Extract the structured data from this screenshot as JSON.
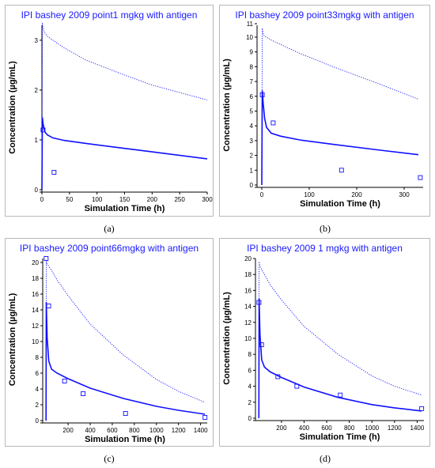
{
  "chart_data": [
    {
      "type": "line",
      "title": "IPI bashey 2009 point1 mgkg with antigen",
      "xlabel": "Simulation Time (h)",
      "ylabel": "Concentration (µg/mL)",
      "caption": "(a)",
      "xlim": [
        0,
        300
      ],
      "ylim": [
        0,
        3.3
      ],
      "xticks": [
        0,
        50,
        100,
        150,
        200,
        250,
        300
      ],
      "yticks": [
        0,
        1,
        2,
        3
      ],
      "series": [
        {
          "style": "solid",
          "x": [
            0,
            0.8,
            2,
            4,
            6,
            10,
            20,
            40,
            80,
            150,
            200,
            300
          ],
          "y": [
            0,
            1.45,
            1.33,
            1.22,
            1.15,
            1.1,
            1.04,
            0.99,
            0.93,
            0.83,
            0.76,
            0.62
          ]
        },
        {
          "style": "dotted",
          "x": [
            0,
            0.8,
            2,
            5,
            10,
            20,
            40,
            80,
            150,
            200,
            300
          ],
          "y": [
            0,
            3.35,
            3.25,
            3.15,
            3.08,
            3.0,
            2.85,
            2.6,
            2.3,
            2.1,
            1.8
          ]
        }
      ],
      "observed": {
        "x": [
          2,
          22
        ],
        "y": [
          1.2,
          0.35
        ]
      }
    },
    {
      "type": "line",
      "title": "IPI bashey 2009 point33mgkg with antigen",
      "xlabel": "Simulation Time (h)",
      "ylabel": "Concentration (µg/mL)",
      "caption": "(b)",
      "xlim": [
        -10,
        340
      ],
      "ylim": [
        0,
        10.8
      ],
      "xticks": [
        0,
        100,
        200,
        300
      ],
      "yticks": [
        0,
        1,
        2,
        3,
        4,
        5,
        6,
        7,
        8,
        9,
        10,
        11
      ],
      "series": [
        {
          "style": "solid",
          "x": [
            0,
            1,
            3,
            6,
            10,
            20,
            40,
            80,
            150,
            250,
            330
          ],
          "y": [
            0,
            6.4,
            5.5,
            4.5,
            3.9,
            3.5,
            3.3,
            3.05,
            2.75,
            2.35,
            2.05
          ]
        },
        {
          "style": "dotted",
          "x": [
            0,
            1,
            3,
            6,
            10,
            20,
            40,
            80,
            150,
            250,
            330
          ],
          "y": [
            0,
            10.6,
            10.2,
            10.05,
            10.0,
            9.8,
            9.5,
            8.9,
            8.0,
            6.8,
            5.8
          ]
        }
      ],
      "observed": {
        "x": [
          1,
          24,
          168,
          334
        ],
        "y": [
          6.1,
          4.2,
          1.0,
          0.5
        ]
      }
    },
    {
      "type": "line",
      "title": "IPI bashey 2009 point66mgkg with antigen",
      "xlabel": "Simulation Time (h)",
      "ylabel": "Concentration (µg/mL)",
      "caption": "(c)",
      "xlim": [
        -30,
        1460
      ],
      "ylim": [
        0,
        20.5
      ],
      "xticks": [
        200,
        400,
        600,
        800,
        1000,
        1200,
        1400
      ],
      "yticks": [
        0,
        2,
        4,
        6,
        8,
        10,
        12,
        14,
        16,
        18,
        20
      ],
      "series": [
        {
          "style": "solid",
          "x": [
            0,
            2,
            10,
            25,
            50,
            100,
            200,
            400,
            700,
            1000,
            1200,
            1440
          ],
          "y": [
            0,
            15,
            10.5,
            7.5,
            6.5,
            6.0,
            5.3,
            4.1,
            2.8,
            1.8,
            1.3,
            0.8
          ]
        },
        {
          "style": "dotted",
          "x": [
            0,
            2,
            10,
            50,
            100,
            200,
            400,
            700,
            1000,
            1200,
            1440
          ],
          "y": [
            0,
            20.3,
            19.8,
            19.0,
            17.8,
            15.8,
            12.2,
            8.3,
            5.2,
            3.7,
            2.3
          ]
        }
      ],
      "observed": {
        "x": [
          1,
          24,
          168,
          336,
          720,
          1440
        ],
        "y": [
          20.5,
          14.5,
          5.0,
          3.4,
          0.9,
          0.4
        ]
      }
    },
    {
      "type": "line",
      "title": "IPI bashey 2009 1 mgkg with antigen",
      "xlabel": "Simulation Time (h)",
      "ylabel": "Concentration (µg/mL)",
      "caption": "(d)",
      "xlim": [
        -30,
        1460
      ],
      "ylim": [
        0,
        20
      ],
      "xticks": [
        200,
        400,
        600,
        800,
        1000,
        1200,
        1400
      ],
      "yticks": [
        0,
        2,
        4,
        6,
        8,
        10,
        12,
        14,
        16,
        18,
        20
      ],
      "series": [
        {
          "style": "solid",
          "x": [
            0,
            2,
            10,
            25,
            50,
            100,
            200,
            400,
            700,
            1000,
            1200,
            1440
          ],
          "y": [
            0,
            15,
            10.5,
            7.3,
            6.4,
            5.8,
            5.1,
            3.9,
            2.6,
            1.7,
            1.3,
            0.9
          ]
        },
        {
          "style": "dotted",
          "x": [
            0,
            2,
            10,
            50,
            100,
            200,
            400,
            700,
            1000,
            1200,
            1440
          ],
          "y": [
            0,
            19.6,
            19.0,
            18.0,
            16.7,
            14.8,
            11.5,
            8.0,
            5.3,
            4.0,
            2.9
          ]
        }
      ],
      "observed": {
        "x": [
          1,
          24,
          168,
          336,
          720,
          1440
        ],
        "y": [
          14.5,
          9.2,
          5.2,
          4.0,
          2.9,
          1.2
        ]
      }
    }
  ]
}
